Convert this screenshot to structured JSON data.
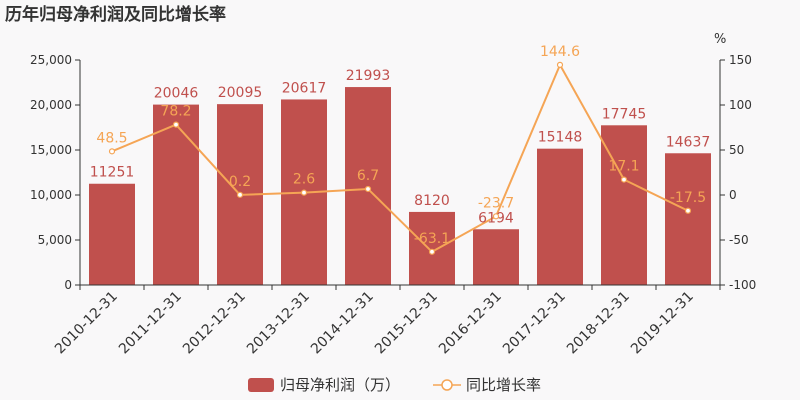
{
  "chart_data": {
    "type": "bar",
    "title": "历年归母净利润及同比增长率",
    "y2unit": "%",
    "categories": [
      "2010-12-31",
      "2011-12-31",
      "2012-12-31",
      "2013-12-31",
      "2014-12-31",
      "2015-12-31",
      "2016-12-31",
      "2017-12-31",
      "2018-12-31",
      "2019-12-31"
    ],
    "series": [
      {
        "name": "归母净利润（万）",
        "type": "bar",
        "axis": "left",
        "color": "#c0504d",
        "values": [
          11251,
          20046,
          20095,
          20617,
          21993,
          8120,
          6194,
          15148,
          17745,
          14637
        ]
      },
      {
        "name": "同比增长率",
        "type": "line",
        "axis": "right",
        "color": "#f5a555",
        "values": [
          48.5,
          78.2,
          0.2,
          2.6,
          6.7,
          -63.1,
          -23.7,
          144.6,
          17.1,
          -17.5
        ]
      }
    ],
    "ylim": [
      0,
      25000
    ],
    "yticks": [
      0,
      5000,
      10000,
      15000,
      20000,
      25000
    ],
    "y2lim": [
      -100,
      150
    ],
    "y2ticks": [
      -100,
      -50,
      0,
      50,
      100,
      150
    ],
    "legend": "bottom"
  }
}
